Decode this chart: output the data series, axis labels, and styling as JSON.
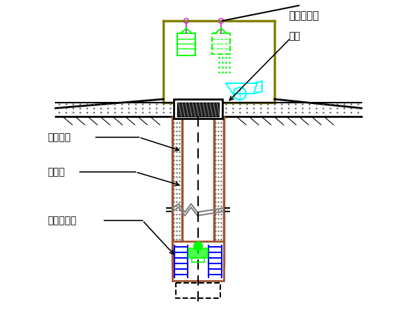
{
  "bg_color": "#ffffff",
  "olive": "#808000",
  "brown": "#A0522D",
  "cyan": "#00FFFF",
  "green": "#00FF00",
  "blue": "#0000FF",
  "black": "#000000",
  "purple": "#CC44CC",
  "gray": "#808080",
  "dark_gray": "#404040",
  "label_title": "单轨电动葫",
  "label_huo_di": "活底",
  "label_huo_dong": "活动安全",
  "label_hun_ning": "混凝土",
  "label_ding_xing": "定型组合鈢"
}
